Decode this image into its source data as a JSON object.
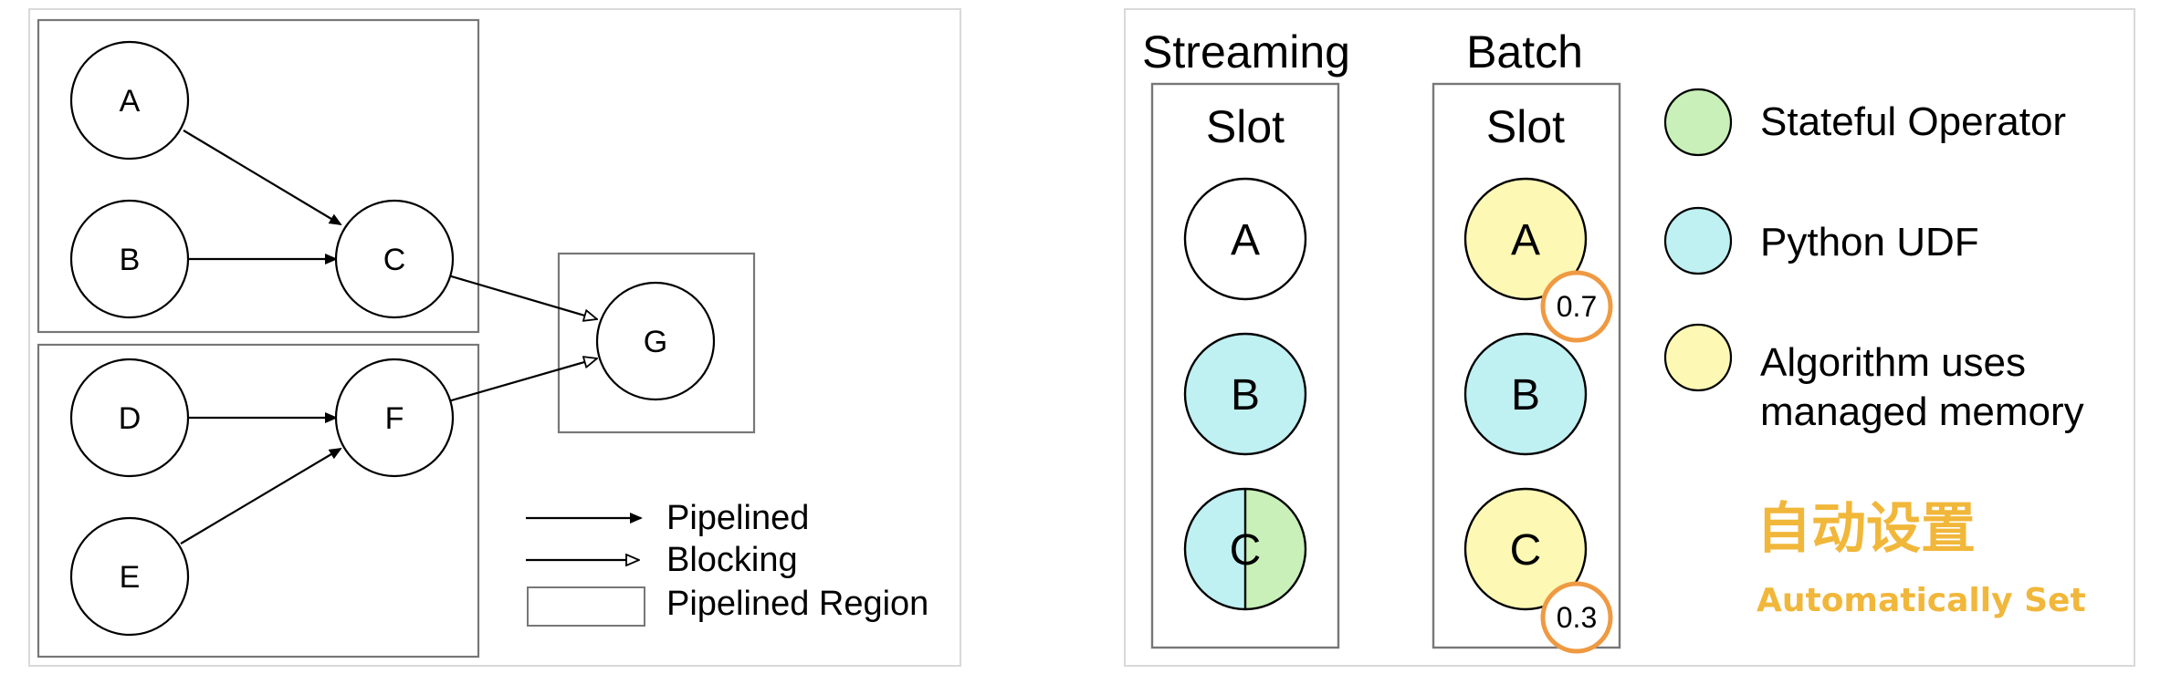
{
  "left_diagram": {
    "nodes": {
      "A": "A",
      "B": "B",
      "C": "C",
      "D": "D",
      "E": "E",
      "F": "F",
      "G": "G"
    },
    "legend": {
      "pipelined": "Pipelined",
      "blocking": "Blocking",
      "pipelined_region": "Pipelined Region"
    }
  },
  "right_diagram": {
    "streaming": {
      "header": "Streaming",
      "slot_label": "Slot",
      "operators": {
        "A": "A",
        "B": "B",
        "C": "C"
      }
    },
    "batch": {
      "header": "Batch",
      "slot_label": "Slot",
      "operators": {
        "A": "A",
        "B": "B",
        "C": "C"
      },
      "fractions": {
        "A": "0.7",
        "C": "0.3"
      }
    },
    "legend": {
      "stateful": "Stateful Operator",
      "python_udf": "Python UDF",
      "managed_line1": "Algorithm uses",
      "managed_line2": "managed memory"
    },
    "auto": {
      "cn": "自动设置",
      "en": "Automatically Set"
    }
  },
  "colors": {
    "stateful_green": "#c8f0b8",
    "python_cyan": "#bff0f2",
    "managed_yellow": "#fdf8b4",
    "badge_orange": "#ef9a43",
    "auto_gold": "#f1b73a"
  }
}
